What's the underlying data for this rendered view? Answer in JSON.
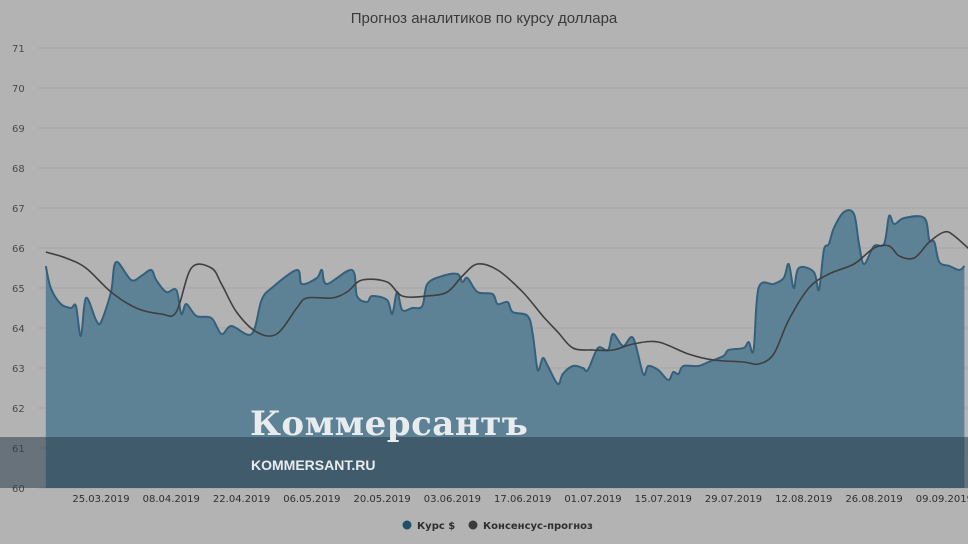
{
  "chart_data": {
    "type": "area",
    "title": "Прогноз аналитиков по курсу доллара",
    "xlabel": "",
    "ylabel": "",
    "ylim": [
      60,
      71
    ],
    "y_ticks": [
      "71",
      "70",
      "69",
      "68",
      "67",
      "66",
      "65",
      "64",
      "63",
      "62",
      "61",
      "60"
    ],
    "x_tick_labels": [
      "25.03.2019",
      "08.04.2019",
      "22.04.2019",
      "06.05.2019",
      "20.05.2019",
      "03.06.2019",
      "17.06.2019",
      "01.07.2019",
      "15.07.2019",
      "29.07.2019",
      "12.08.2019",
      "26.08.2019",
      "09.09.2019"
    ],
    "x_range": [
      "14.03.2019",
      "10.09.2019"
    ],
    "grid": true,
    "legend_position": "bottom-center",
    "series": [
      {
        "name": "Курс $",
        "color": "#34607c",
        "fill": "#5a7f94",
        "points": [
          [
            "14.03.2019",
            65.55
          ],
          [
            "15.03.2019",
            65.0
          ],
          [
            "17.03.2019",
            64.6
          ],
          [
            "19.03.2019",
            64.5
          ],
          [
            "20.03.2019",
            64.55
          ],
          [
            "21.03.2019",
            63.8
          ],
          [
            "22.03.2019",
            64.75
          ],
          [
            "24.03.2019",
            64.2
          ],
          [
            "25.03.2019",
            64.15
          ],
          [
            "27.03.2019",
            64.9
          ],
          [
            "28.03.2019",
            65.65
          ],
          [
            "31.03.2019",
            65.2
          ],
          [
            "02.04.2019",
            65.3
          ],
          [
            "04.04.2019",
            65.45
          ],
          [
            "05.04.2019",
            65.2
          ],
          [
            "07.04.2019",
            64.9
          ],
          [
            "09.04.2019",
            64.95
          ],
          [
            "10.04.2019",
            64.35
          ],
          [
            "11.04.2019",
            64.6
          ],
          [
            "13.04.2019",
            64.3
          ],
          [
            "16.04.2019",
            64.25
          ],
          [
            "18.04.2019",
            63.85
          ],
          [
            "20.04.2019",
            64.05
          ],
          [
            "24.04.2019",
            63.85
          ],
          [
            "26.04.2019",
            64.7
          ],
          [
            "28.04.2019",
            65.0
          ],
          [
            "03.05.2019",
            65.45
          ],
          [
            "04.05.2019",
            65.1
          ],
          [
            "07.05.2019",
            65.25
          ],
          [
            "08.05.2019",
            65.45
          ],
          [
            "09.05.2019",
            65.1
          ],
          [
            "14.05.2019",
            65.45
          ],
          [
            "15.05.2019",
            64.8
          ],
          [
            "17.05.2019",
            64.65
          ],
          [
            "18.05.2019",
            64.8
          ],
          [
            "21.05.2019",
            64.7
          ],
          [
            "22.05.2019",
            64.35
          ],
          [
            "23.05.2019",
            64.9
          ],
          [
            "24.05.2019",
            64.45
          ],
          [
            "26.05.2019",
            64.5
          ],
          [
            "28.05.2019",
            64.55
          ],
          [
            "29.05.2019",
            65.1
          ],
          [
            "01.06.2019",
            65.3
          ],
          [
            "04.06.2019",
            65.35
          ],
          [
            "05.06.2019",
            65.15
          ],
          [
            "06.06.2019",
            65.25
          ],
          [
            "08.06.2019",
            64.9
          ],
          [
            "11.06.2019",
            64.85
          ],
          [
            "12.06.2019",
            64.6
          ],
          [
            "14.06.2019",
            64.65
          ],
          [
            "15.06.2019",
            64.4
          ],
          [
            "18.06.2019",
            64.3
          ],
          [
            "19.06.2019",
            63.85
          ],
          [
            "20.06.2019",
            62.95
          ],
          [
            "21.06.2019",
            63.25
          ],
          [
            "22.06.2019",
            63.05
          ],
          [
            "24.06.2019",
            62.6
          ],
          [
            "25.06.2019",
            62.85
          ],
          [
            "27.06.2019",
            63.05
          ],
          [
            "29.06.2019",
            63.0
          ],
          [
            "30.06.2019",
            62.95
          ],
          [
            "02.07.2019",
            63.5
          ],
          [
            "04.07.2019",
            63.45
          ],
          [
            "05.07.2019",
            63.85
          ],
          [
            "07.07.2019",
            63.55
          ],
          [
            "09.07.2019",
            63.75
          ],
          [
            "11.07.2019",
            62.85
          ],
          [
            "12.07.2019",
            63.05
          ],
          [
            "14.07.2019",
            62.95
          ],
          [
            "16.07.2019",
            62.7
          ],
          [
            "17.07.2019",
            62.9
          ],
          [
            "18.07.2019",
            62.85
          ],
          [
            "19.07.2019",
            63.05
          ],
          [
            "22.07.2019",
            63.05
          ],
          [
            "24.07.2019",
            63.15
          ],
          [
            "27.07.2019",
            63.3
          ],
          [
            "28.07.2019",
            63.45
          ],
          [
            "31.07.2019",
            63.5
          ],
          [
            "01.08.2019",
            63.65
          ],
          [
            "02.08.2019",
            63.45
          ],
          [
            "03.08.2019",
            65.0
          ],
          [
            "06.08.2019",
            65.1
          ],
          [
            "08.08.2019",
            65.25
          ],
          [
            "09.08.2019",
            65.6
          ],
          [
            "10.08.2019",
            65.0
          ],
          [
            "11.08.2019",
            65.5
          ],
          [
            "14.08.2019",
            65.4
          ],
          [
            "15.08.2019",
            64.95
          ],
          [
            "16.08.2019",
            65.95
          ],
          [
            "17.08.2019",
            66.1
          ],
          [
            "18.08.2019",
            66.5
          ],
          [
            "20.08.2019",
            66.9
          ],
          [
            "22.08.2019",
            66.85
          ],
          [
            "23.08.2019",
            66.1
          ],
          [
            "24.08.2019",
            65.6
          ],
          [
            "26.08.2019",
            66.05
          ],
          [
            "28.08.2019",
            66.1
          ],
          [
            "29.08.2019",
            66.8
          ],
          [
            "30.08.2019",
            66.6
          ],
          [
            "01.09.2019",
            66.75
          ],
          [
            "05.09.2019",
            66.75
          ],
          [
            "06.09.2019",
            66.2
          ],
          [
            "07.09.2019",
            66.15
          ],
          [
            "08.09.2019",
            65.65
          ],
          [
            "10.09.2019",
            65.55
          ],
          [
            "12.09.2019",
            65.45
          ],
          [
            "13.09.2019",
            65.55
          ]
        ]
      },
      {
        "name": "Консенсус-прогноз",
        "color": "#3f3f3f",
        "points": [
          [
            "14.03.2019",
            65.9
          ],
          [
            "18.03.2019",
            65.75
          ],
          [
            "22.03.2019",
            65.5
          ],
          [
            "27.03.2019",
            64.9
          ],
          [
            "01.04.2019",
            64.5
          ],
          [
            "06.04.2019",
            64.35
          ],
          [
            "09.04.2019",
            64.4
          ],
          [
            "12.04.2019",
            65.5
          ],
          [
            "16.04.2019",
            65.5
          ],
          [
            "18.04.2019",
            65.1
          ],
          [
            "21.04.2019",
            64.4
          ],
          [
            "25.04.2019",
            63.9
          ],
          [
            "29.04.2019",
            63.85
          ],
          [
            "03.05.2019",
            64.5
          ],
          [
            "05.05.2019",
            64.75
          ],
          [
            "10.05.2019",
            64.75
          ],
          [
            "13.05.2019",
            64.9
          ],
          [
            "16.05.2019",
            65.2
          ],
          [
            "21.05.2019",
            65.15
          ],
          [
            "24.05.2019",
            64.8
          ],
          [
            "29.05.2019",
            64.8
          ],
          [
            "02.06.2019",
            64.9
          ],
          [
            "05.06.2019",
            65.3
          ],
          [
            "08.06.2019",
            65.6
          ],
          [
            "12.06.2019",
            65.45
          ],
          [
            "17.06.2019",
            64.9
          ],
          [
            "21.06.2019",
            64.3
          ],
          [
            "24.06.2019",
            63.9
          ],
          [
            "27.06.2019",
            63.5
          ],
          [
            "01.07.2019",
            63.45
          ],
          [
            "05.07.2019",
            63.45
          ],
          [
            "09.07.2019",
            63.6
          ],
          [
            "14.07.2019",
            63.65
          ],
          [
            "20.07.2019",
            63.35
          ],
          [
            "25.07.2019",
            63.2
          ],
          [
            "31.07.2019",
            63.15
          ],
          [
            "03.08.2019",
            63.1
          ],
          [
            "06.08.2019",
            63.35
          ],
          [
            "09.08.2019",
            64.2
          ],
          [
            "13.08.2019",
            65.0
          ],
          [
            "17.08.2019",
            65.35
          ],
          [
            "22.08.2019",
            65.6
          ],
          [
            "26.08.2019",
            66.0
          ],
          [
            "29.08.2019",
            66.05
          ],
          [
            "31.08.2019",
            65.8
          ],
          [
            "03.09.2019",
            65.75
          ],
          [
            "06.09.2019",
            66.15
          ],
          [
            "09.09.2019",
            66.4
          ],
          [
            "11.09.2019",
            66.3
          ],
          [
            "15.09.2019",
            65.85
          ]
        ]
      }
    ]
  },
  "watermark": {
    "logo_text": "Коммерсантъ",
    "site_text": "KOMMERSANT.RU"
  },
  "colors": {
    "background": "#b3b3b3",
    "grid": "#a4a4a4",
    "band": "#3c5a6e"
  }
}
